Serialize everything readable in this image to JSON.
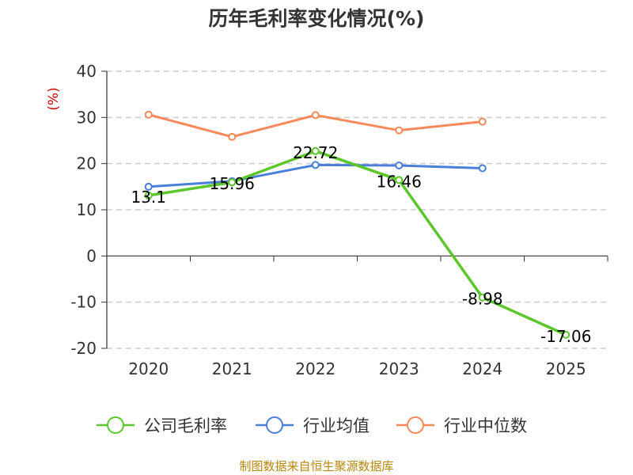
{
  "title": "历年毛利率变化情况(%)",
  "source": "制图数据来自恒生聚源数据库",
  "chart_data": {
    "type": "line",
    "title": "历年毛利率变化情况(%)",
    "ylabel": "(%)",
    "xlabel": "",
    "categories": [
      "2020",
      "2021",
      "2022",
      "2023",
      "2024",
      "2025"
    ],
    "ylim": [
      -20,
      40
    ],
    "yticks": [
      40,
      30,
      20,
      10,
      0,
      -10,
      -20
    ],
    "grid": true,
    "legend_position": "bottom",
    "series": [
      {
        "name": "公司毛利率",
        "color": "#5cc72a",
        "values": [
          13.1,
          15.96,
          22.72,
          16.46,
          -8.98,
          -17.06
        ],
        "data_labels": [
          "13.1",
          "15.96",
          "22.72",
          "16.46",
          "-8.98",
          "-17.06"
        ]
      },
      {
        "name": "行业均值",
        "color": "#4a7fd9",
        "values": [
          15.0,
          16.2,
          19.7,
          19.6,
          19.0,
          null
        ],
        "data_labels": null
      },
      {
        "name": "行业中位数",
        "color": "#f7895a",
        "values": [
          30.6,
          25.8,
          30.5,
          27.2,
          29.1,
          null
        ],
        "data_labels": null
      }
    ]
  }
}
